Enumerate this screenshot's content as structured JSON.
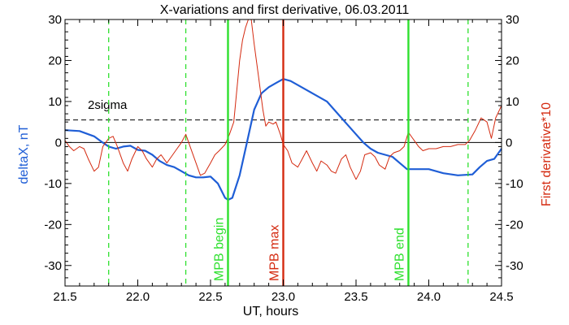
{
  "colors": {
    "deltaX": "#1f5ed6",
    "derivative": "#d42a10",
    "marker_green": "#2ee02e",
    "marker_red": "#d42a10",
    "axis": "#000000"
  },
  "chart_data": {
    "type": "line",
    "title": "X-variations and first derivative, 06.03.2011",
    "xlabel": "UT, hours",
    "ylabel_left": "deltaX, nT",
    "ylabel_right": "First derivative*10",
    "xlim": [
      21.5,
      24.5
    ],
    "ylim": [
      -35,
      30
    ],
    "x_ticks": [
      "21.5",
      "22.0",
      "22.5",
      "23.0",
      "23.5",
      "24.0",
      "24.5"
    ],
    "y_ticks_left": [
      "-30",
      "-20",
      "-10",
      "0",
      "10",
      "20",
      "30"
    ],
    "y_ticks_right": [
      "-30",
      "-20",
      "-10",
      "0",
      "10",
      "20",
      "30"
    ],
    "zero_line": 0,
    "threshold": {
      "label": "2sigma",
      "value": 5.5
    },
    "markers_dashed_green": [
      21.8,
      22.33,
      24.27
    ],
    "markers_solid": [
      {
        "label": "MPB begin",
        "x": 22.62,
        "color": "green"
      },
      {
        "label": "MPB max",
        "x": 23.0,
        "color": "red"
      },
      {
        "label": "MPB end",
        "x": 23.86,
        "color": "green"
      }
    ],
    "series": [
      {
        "axis": "left",
        "points": [
          [
            21.5,
            3.0
          ],
          [
            21.6,
            2.8
          ],
          [
            21.7,
            1.5
          ],
          [
            21.75,
            0.2
          ],
          [
            21.8,
            -1.0
          ],
          [
            21.85,
            -1.5
          ],
          [
            21.9,
            -1.0
          ],
          [
            21.95,
            -0.8
          ],
          [
            22.0,
            -1.8
          ],
          [
            22.05,
            -2.0
          ],
          [
            22.1,
            -3.0
          ],
          [
            22.15,
            -4.5
          ],
          [
            22.2,
            -5.5
          ],
          [
            22.25,
            -6.0
          ],
          [
            22.3,
            -7.0
          ],
          [
            22.35,
            -8.0
          ],
          [
            22.4,
            -8.5
          ],
          [
            22.45,
            -8.5
          ],
          [
            22.5,
            -8.3
          ],
          [
            22.55,
            -10.0
          ],
          [
            22.6,
            -13.5
          ],
          [
            22.62,
            -14.0
          ],
          [
            22.65,
            -13.5
          ],
          [
            22.7,
            -8.0
          ],
          [
            22.75,
            0.0
          ],
          [
            22.8,
            8.0
          ],
          [
            22.85,
            12.0
          ],
          [
            22.9,
            13.5
          ],
          [
            22.95,
            14.5
          ],
          [
            23.0,
            15.5
          ],
          [
            23.05,
            15.0
          ],
          [
            23.1,
            14.0
          ],
          [
            23.2,
            12.0
          ],
          [
            23.3,
            10.0
          ],
          [
            23.4,
            6.0
          ],
          [
            23.45,
            4.0
          ],
          [
            23.5,
            2.0
          ],
          [
            23.55,
            0.0
          ],
          [
            23.6,
            -1.5
          ],
          [
            23.65,
            -2.5
          ],
          [
            23.7,
            -3.0
          ],
          [
            23.75,
            -3.5
          ],
          [
            23.8,
            -5.0
          ],
          [
            23.85,
            -6.5
          ],
          [
            23.9,
            -6.5
          ],
          [
            24.0,
            -6.5
          ],
          [
            24.1,
            -7.5
          ],
          [
            24.2,
            -8.0
          ],
          [
            24.3,
            -7.8
          ],
          [
            24.35,
            -6.0
          ],
          [
            24.4,
            -4.5
          ],
          [
            24.45,
            -4.0
          ],
          [
            24.5,
            -1.5
          ]
        ]
      },
      {
        "axis": "right",
        "points": [
          [
            21.5,
            0.5
          ],
          [
            21.53,
            -1.0
          ],
          [
            21.56,
            -2.0
          ],
          [
            21.6,
            -1.0
          ],
          [
            21.63,
            -1.5
          ],
          [
            21.66,
            -4.0
          ],
          [
            21.7,
            -7.0
          ],
          [
            21.73,
            -6.0
          ],
          [
            21.76,
            -1.0
          ],
          [
            21.8,
            1.0
          ],
          [
            21.83,
            1.5
          ],
          [
            21.86,
            -1.0
          ],
          [
            21.9,
            -5.0
          ],
          [
            21.93,
            -7.0
          ],
          [
            21.96,
            -4.0
          ],
          [
            22.0,
            -1.0
          ],
          [
            22.03,
            -2.0
          ],
          [
            22.06,
            -4.0
          ],
          [
            22.1,
            -6.0
          ],
          [
            22.13,
            -4.0
          ],
          [
            22.16,
            -3.0
          ],
          [
            22.2,
            -5.0
          ],
          [
            22.23,
            -3.5
          ],
          [
            22.26,
            -2.0
          ],
          [
            22.3,
            0.0
          ],
          [
            22.33,
            2.0
          ],
          [
            22.36,
            -1.0
          ],
          [
            22.4,
            -5.0
          ],
          [
            22.43,
            -8.0
          ],
          [
            22.46,
            -7.5
          ],
          [
            22.5,
            -5.0
          ],
          [
            22.53,
            -3.0
          ],
          [
            22.56,
            -2.0
          ],
          [
            22.6,
            -0.5
          ],
          [
            22.63,
            2.0
          ],
          [
            22.66,
            5.0
          ],
          [
            22.7,
            20.0
          ],
          [
            22.72,
            25.0
          ],
          [
            22.74,
            28.0
          ],
          [
            22.76,
            30.0
          ],
          [
            22.78,
            30.0
          ],
          [
            22.8,
            24.0
          ],
          [
            22.83,
            16.0
          ],
          [
            22.86,
            8.0
          ],
          [
            22.88,
            4.0
          ],
          [
            22.9,
            5.0
          ],
          [
            22.93,
            4.5
          ],
          [
            22.95,
            5.0
          ],
          [
            22.98,
            2.0
          ],
          [
            23.0,
            -0.5
          ],
          [
            23.03,
            -2.0
          ],
          [
            23.06,
            -5.0
          ],
          [
            23.1,
            -6.0
          ],
          [
            23.13,
            -4.0
          ],
          [
            23.16,
            -2.0
          ],
          [
            23.2,
            -5.0
          ],
          [
            23.23,
            -7.0
          ],
          [
            23.26,
            -4.5
          ],
          [
            23.3,
            -5.5
          ],
          [
            23.33,
            -7.0
          ],
          [
            23.36,
            -7.5
          ],
          [
            23.4,
            -4.0
          ],
          [
            23.43,
            -3.0
          ],
          [
            23.46,
            -6.0
          ],
          [
            23.5,
            -9.0
          ],
          [
            23.53,
            -7.0
          ],
          [
            23.56,
            -3.0
          ],
          [
            23.6,
            -2.5
          ],
          [
            23.63,
            -3.5
          ],
          [
            23.66,
            -5.5
          ],
          [
            23.7,
            -6.5
          ],
          [
            23.73,
            -3.5
          ],
          [
            23.76,
            -2.5
          ],
          [
            23.8,
            -2.0
          ],
          [
            23.83,
            -1.0
          ],
          [
            23.86,
            2.5
          ],
          [
            23.9,
            0.5
          ],
          [
            23.93,
            -1.0
          ],
          [
            23.96,
            -2.0
          ],
          [
            24.0,
            -1.5
          ],
          [
            24.05,
            -1.5
          ],
          [
            24.1,
            -1.0
          ],
          [
            24.15,
            -1.0
          ],
          [
            24.2,
            -0.5
          ],
          [
            24.25,
            -0.5
          ],
          [
            24.28,
            0.5
          ],
          [
            24.32,
            3.0
          ],
          [
            24.36,
            6.0
          ],
          [
            24.4,
            5.0
          ],
          [
            24.43,
            1.0
          ],
          [
            24.46,
            6.0
          ],
          [
            24.5,
            9.0
          ]
        ]
      }
    ]
  }
}
